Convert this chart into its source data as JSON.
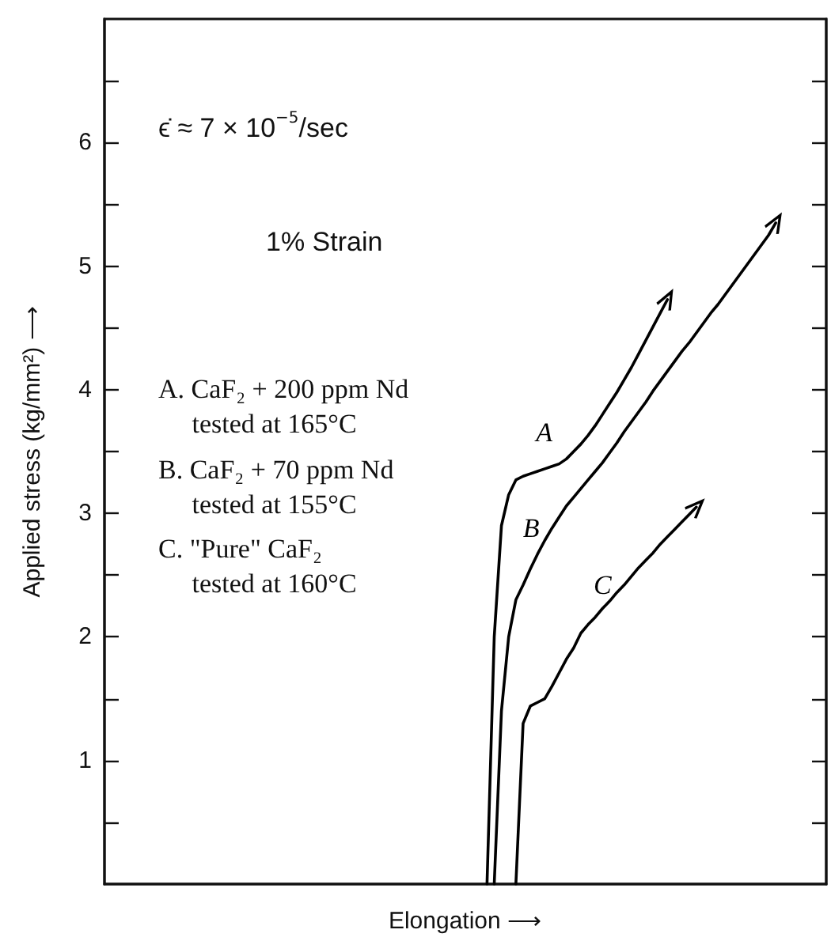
{
  "chart_data": {
    "type": "line",
    "xlabel": "Elongation ⟶",
    "ylabel": "Applied stress (kg/mm²) ⟶",
    "annotations": [
      "ϵ̇ ≈ 7 × 10$^{−5}$/sec",
      "1% Strain",
      "A. CaF₂ + 200 ppm Nd\n     tested at 165°C",
      "B. CaF₂ + 70 ppm Nd\n     tested at 155°C",
      "C. \"Pure\" CaF₂\n     tested at 160°C"
    ],
    "categories": [
      null,
      null,
      null,
      null,
      null,
      null,
      null,
      null,
      null,
      null,
      null,
      null,
      null,
      null,
      null,
      null,
      null,
      null,
      null,
      null,
      null,
      null,
      null,
      null,
      null,
      null,
      null,
      null,
      null,
      null,
      null,
      null,
      null,
      null,
      null,
      null,
      null,
      null,
      null,
      null,
      null,
      null,
      null,
      null,
      null,
      null,
      null,
      null,
      null,
      null,
      null,
      null,
      null,
      null,
      null,
      null,
      null,
      null,
      null,
      null,
      null,
      null,
      null,
      null,
      null,
      null,
      null,
      null,
      null,
      null,
      null,
      null,
      null,
      null,
      null,
      null,
      null,
      null,
      null,
      null,
      null,
      null,
      null,
      null,
      null,
      null,
      null,
      null,
      null,
      null,
      null,
      null,
      null,
      null,
      null,
      null,
      null,
      null,
      null,
      null,
      null
    ],
    "ylim": [
      0,
      7
    ],
    "yticks": [
      {
        "value": 0.5,
        "label": null
      },
      1,
      {
        "value": 1.5,
        "label": null
      },
      2,
      {
        "value": 2.5,
        "label": null
      },
      3,
      {
        "value": 3.5,
        "label": null
      },
      4,
      {
        "value": 4.5,
        "label": null
      },
      5,
      {
        "value": 5.5,
        "label": null
      },
      6,
      {
        "value": 6.5,
        "label": null
      }
    ],
    "tick_labels": "y",
    "grid": false,
    "legend": false,
    "marker": "none",
    "line_style": "solid",
    "series": [
      {
        "name": "A",
        "color": "#000000",
        "values": [
          null,
          null,
          null,
          null,
          null,
          null,
          null,
          null,
          null,
          null,
          null,
          null,
          null,
          null,
          null,
          null,
          null,
          null,
          null,
          null,
          null,
          null,
          null,
          null,
          null,
          null,
          null,
          null,
          null,
          null,
          null,
          null,
          null,
          null,
          null,
          null,
          null,
          null,
          null,
          null,
          null,
          null,
          null,
          null,
          null,
          null,
          null,
          null,
          null,
          null,
          null,
          null,
          null,
          0,
          2.0,
          2.9,
          3.15,
          3.27,
          3.3,
          3.32,
          3.34,
          3.36,
          3.38,
          3.4,
          3.44,
          3.5,
          3.56,
          3.63,
          3.71,
          3.8,
          3.89,
          3.98,
          4.08,
          4.18,
          4.29,
          4.4,
          4.51,
          4.62,
          4.73,
          null,
          null,
          null,
          null,
          null,
          null,
          null,
          null,
          null,
          null,
          null,
          null,
          null,
          null,
          null,
          null,
          null,
          null,
          null,
          null,
          null,
          null
        ]
      },
      {
        "name": "B",
        "color": "#000000",
        "values": [
          null,
          null,
          null,
          null,
          null,
          null,
          null,
          null,
          null,
          null,
          null,
          null,
          null,
          null,
          null,
          null,
          null,
          null,
          null,
          null,
          null,
          null,
          null,
          null,
          null,
          null,
          null,
          null,
          null,
          null,
          null,
          null,
          null,
          null,
          null,
          null,
          null,
          null,
          null,
          null,
          null,
          null,
          null,
          null,
          null,
          null,
          null,
          null,
          null,
          null,
          null,
          null,
          null,
          null,
          0,
          1.4,
          2.0,
          2.3,
          2.42,
          2.55,
          2.67,
          2.78,
          2.88,
          2.97,
          3.06,
          3.13,
          3.2,
          3.27,
          3.34,
          3.41,
          3.49,
          3.57,
          3.66,
          3.74,
          3.82,
          3.9,
          3.99,
          4.07,
          4.15,
          4.23,
          4.31,
          4.38,
          4.46,
          4.54,
          4.62,
          4.69,
          4.77,
          4.85,
          4.93,
          5.01,
          5.09,
          5.17,
          5.25,
          5.35,
          null,
          null,
          null,
          null,
          null,
          null,
          null
        ]
      },
      {
        "name": "C",
        "color": "#000000",
        "values": [
          null,
          null,
          null,
          null,
          null,
          null,
          null,
          null,
          null,
          null,
          null,
          null,
          null,
          null,
          null,
          null,
          null,
          null,
          null,
          null,
          null,
          null,
          null,
          null,
          null,
          null,
          null,
          null,
          null,
          null,
          null,
          null,
          null,
          null,
          null,
          null,
          null,
          null,
          null,
          null,
          null,
          null,
          null,
          null,
          null,
          null,
          null,
          null,
          null,
          null,
          null,
          null,
          null,
          null,
          null,
          null,
          null,
          0,
          1.3,
          1.44,
          1.47,
          1.5,
          1.6,
          1.71,
          1.82,
          1.91,
          2.03,
          2.1,
          2.16,
          2.23,
          2.29,
          2.36,
          2.42,
          2.49,
          2.56,
          2.62,
          2.68,
          2.75,
          2.81,
          2.87,
          2.93,
          2.99,
          3.05,
          null,
          null,
          null,
          null,
          null,
          null,
          null,
          null,
          null,
          null,
          null,
          null,
          null,
          null,
          null,
          null,
          null,
          null
        ]
      }
    ]
  }
}
